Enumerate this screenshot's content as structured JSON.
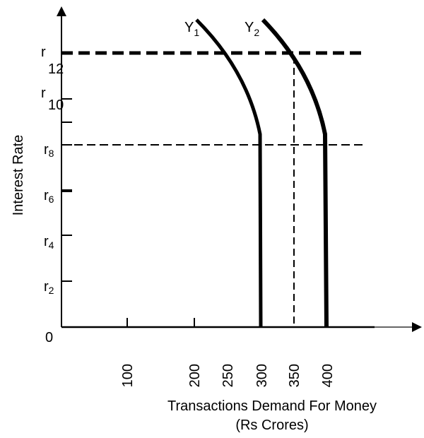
{
  "y_axis_label": "Interest Rate",
  "x_axis_label": [
    "Transactions Demand For Money",
    "(Rs Crores)"
  ],
  "origin_label": "0",
  "x_ticks": [
    "100",
    "200",
    "250",
    "300",
    "350",
    "400"
  ],
  "y_ticks": [
    {
      "base": "r",
      "sub": "12"
    },
    {
      "base": "r",
      "sub": "10"
    },
    {
      "base": "r",
      "sub": "8"
    },
    {
      "base": "r",
      "sub": "6"
    },
    {
      "base": "r",
      "sub": "4"
    },
    {
      "base": "r",
      "sub": "2"
    }
  ],
  "curves": [
    {
      "base": "Y",
      "sub": "1"
    },
    {
      "base": "Y",
      "sub": "2"
    }
  ]
}
